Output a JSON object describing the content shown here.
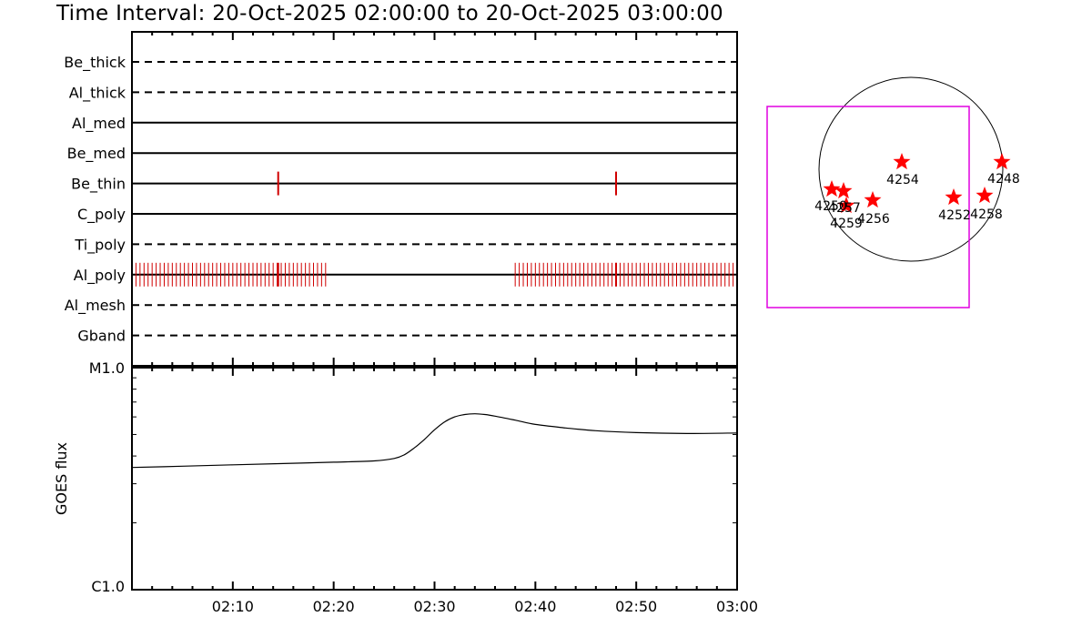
{
  "title": "Time Interval: 20-Oct-2025 02:00:00 to 20-Oct-2025 03:00:00",
  "colors": {
    "axis": "#000000",
    "event": "#d00000",
    "fov_box": "#e000e0",
    "star": "#ff0000"
  },
  "chart_data": [
    {
      "type": "timeline",
      "rows": [
        {
          "label": "Be_thick",
          "style": "dashed"
        },
        {
          "label": "Al_thick",
          "style": "dashed"
        },
        {
          "label": "Al_med",
          "style": "solid"
        },
        {
          "label": "Be_med",
          "style": "solid"
        },
        {
          "label": "Be_thin",
          "style": "solid"
        },
        {
          "label": "C_poly",
          "style": "solid"
        },
        {
          "label": "Ti_poly",
          "style": "dashed"
        },
        {
          "label": "Al_poly",
          "style": "solid"
        },
        {
          "label": "Al_mesh",
          "style": "dashed"
        },
        {
          "label": "Gband",
          "style": "dashed"
        }
      ],
      "events": [
        {
          "row": "Be_thin",
          "times_min": [
            14.5,
            48.0
          ]
        },
        {
          "row": "Al_poly",
          "ranges_min": [
            [
              0,
              19.2
            ],
            [
              38,
              60
            ]
          ],
          "interval_min": 0.4,
          "highlight_min": [
            14.5,
            48.0
          ]
        }
      ],
      "xlim_min": [
        0,
        60
      ]
    },
    {
      "type": "line",
      "ylabel": "GOES flux",
      "yscale": "log",
      "ytick_labels": [
        "M1.0",
        "C1.0"
      ],
      "ylim": [
        1e-06,
        1e-05
      ],
      "xlim_min": [
        0,
        60
      ],
      "x_tick_labels": [
        "02:10",
        "02:20",
        "02:30",
        "02:40",
        "02:50",
        "03:00"
      ],
      "x_tick_min": [
        10,
        20,
        30,
        40,
        50,
        60
      ],
      "series": [
        {
          "x_min": [
            0,
            5,
            10,
            15,
            20,
            24,
            26,
            27,
            28,
            29,
            30,
            31,
            32,
            33,
            34,
            35,
            36,
            38,
            40,
            43,
            46,
            50,
            55,
            60
          ],
          "values": [
            3.55e-06,
            3.6e-06,
            3.65e-06,
            3.7e-06,
            3.75e-06,
            3.8e-06,
            3.9e-06,
            4.05e-06,
            4.35e-06,
            4.75e-06,
            5.25e-06,
            5.7e-06,
            6e-06,
            6.15e-06,
            6.2e-06,
            6.15e-06,
            6.05e-06,
            5.8e-06,
            5.55e-06,
            5.35e-06,
            5.2e-06,
            5.1e-06,
            5.05e-06,
            5.08e-06
          ]
        }
      ]
    },
    {
      "type": "scatter",
      "points": [
        {
          "label": "4248"
        },
        {
          "label": "4254"
        },
        {
          "label": "4252"
        },
        {
          "label": "4258"
        },
        {
          "label": "4256"
        },
        {
          "label": "4257"
        },
        {
          "label": "4259"
        },
        {
          "label": "4250"
        }
      ]
    }
  ]
}
